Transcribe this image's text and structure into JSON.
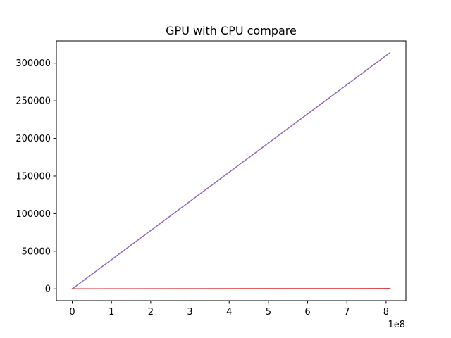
{
  "chart_data": {
    "type": "line",
    "title": "GPU with CPU compare",
    "xlabel": "",
    "ylabel": "",
    "x_offset_label": "1e8",
    "xlim": [
      -0.405,
      8.505
    ],
    "ylim": [
      -15700,
      329700
    ],
    "xticks": [
      0,
      1,
      2,
      3,
      4,
      5,
      6,
      7,
      8
    ],
    "yticks": [
      0,
      50000,
      100000,
      150000,
      200000,
      250000,
      300000
    ],
    "grid": false,
    "legend": "none",
    "series": [
      {
        "color": "#9467bd",
        "x": [
          0,
          8.1
        ],
        "y": [
          0,
          314000
        ]
      },
      {
        "color": "#d62728",
        "x": [
          0,
          8.1
        ],
        "y": [
          0,
          300
        ]
      }
    ]
  }
}
